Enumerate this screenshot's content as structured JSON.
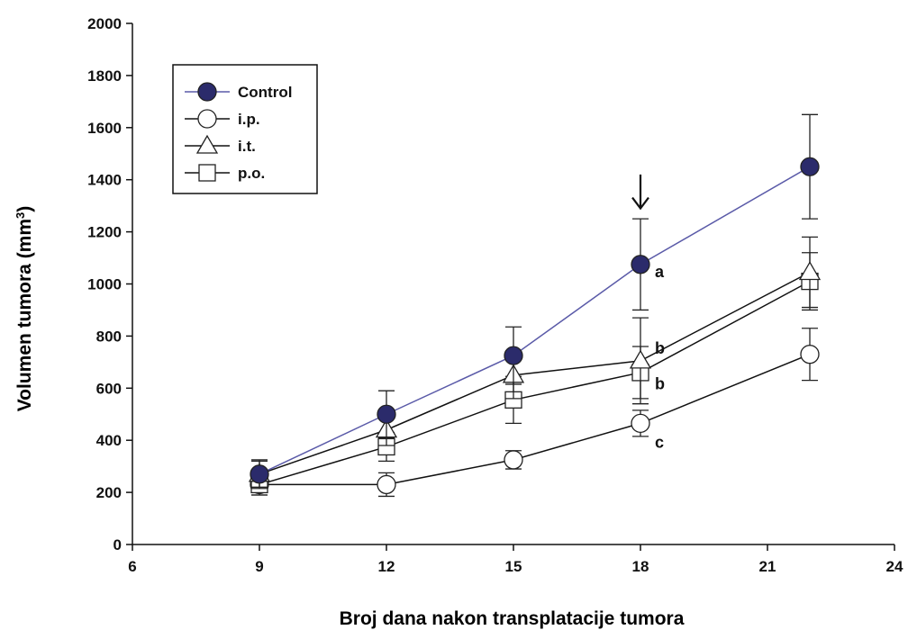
{
  "chart_data": {
    "type": "line",
    "xlabel": "Broj dana nakon transplatacije tumora",
    "ylabel_main": "Volumen tumora (mm",
    "ylabel_sup": "3",
    "ylabel_close": ")",
    "xlim": [
      6,
      24
    ],
    "ylim": [
      0,
      2000
    ],
    "xticks": [
      6,
      9,
      12,
      15,
      18,
      21,
      24
    ],
    "yticks": [
      0,
      200,
      400,
      600,
      800,
      1000,
      1200,
      1400,
      1600,
      1800,
      2000
    ],
    "grid": false,
    "legend_position": "top-left",
    "series": [
      {
        "name": "Control",
        "marker": "filled-circle",
        "line_color": "#5a5aa8",
        "marker_fill": "#2b2b6b",
        "x": [
          9,
          12,
          15,
          18,
          22
        ],
        "y": [
          270,
          500,
          725,
          1075,
          1450
        ],
        "err": [
          55,
          90,
          110,
          175,
          200
        ]
      },
      {
        "name": "i.p.",
        "marker": "open-circle",
        "line_color": "#111111",
        "marker_fill": "#ffffff",
        "x": [
          9,
          12,
          15,
          18,
          22
        ],
        "y": [
          230,
          230,
          325,
          465,
          730
        ],
        "err": [
          40,
          45,
          35,
          50,
          100
        ]
      },
      {
        "name": "i.t.",
        "marker": "open-triangle",
        "line_color": "#111111",
        "marker_fill": "#ffffff",
        "x": [
          9,
          12,
          15,
          18,
          22
        ],
        "y": [
          270,
          440,
          650,
          705,
          1045
        ],
        "err": [
          50,
          60,
          90,
          165,
          135
        ]
      },
      {
        "name": "p.o.",
        "marker": "open-square",
        "line_color": "#111111",
        "marker_fill": "#ffffff",
        "x": [
          9,
          12,
          15,
          18,
          22
        ],
        "y": [
          230,
          375,
          555,
          660,
          1010
        ],
        "err": [
          40,
          55,
          90,
          100,
          110
        ]
      }
    ],
    "annotations": [
      {
        "text": "a",
        "x": 18,
        "y": 1075
      },
      {
        "text": "b",
        "x": 18,
        "y": 780
      },
      {
        "text": "b",
        "x": 18,
        "y": 645
      },
      {
        "text": "c",
        "x": 18,
        "y": 420
      }
    ],
    "arrow": {
      "x": 18,
      "y_from": 1420,
      "y_to": 1290
    }
  }
}
